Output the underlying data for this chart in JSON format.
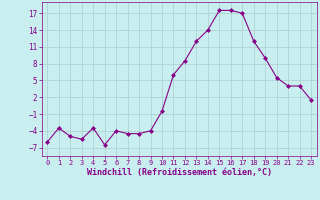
{
  "x": [
    0,
    1,
    2,
    3,
    4,
    5,
    6,
    7,
    8,
    9,
    10,
    11,
    12,
    13,
    14,
    15,
    16,
    17,
    18,
    19,
    20,
    21,
    22,
    23
  ],
  "y": [
    -6,
    -3.5,
    -5,
    -5.5,
    -3.5,
    -6.5,
    -4,
    -4.5,
    -4.5,
    -4,
    -0.5,
    6,
    8.5,
    12,
    14,
    17.5,
    17.5,
    17,
    12,
    9,
    5.5,
    4,
    4,
    1.5
  ],
  "line_color": "#880088",
  "marker": "D",
  "marker_size": 2,
  "bg_color": "#c8eef0",
  "grid_color": "#aacccc",
  "xlabel": "Windchill (Refroidissement éolien,°C)",
  "xlabel_color": "#880088",
  "tick_color": "#880088",
  "ylim": [
    -8.5,
    19
  ],
  "yticks": [
    -7,
    -4,
    -1,
    2,
    5,
    8,
    11,
    14,
    17
  ],
  "xticks": [
    0,
    1,
    2,
    3,
    4,
    5,
    6,
    7,
    8,
    9,
    10,
    11,
    12,
    13,
    14,
    15,
    16,
    17,
    18,
    19,
    20,
    21,
    22,
    23
  ]
}
